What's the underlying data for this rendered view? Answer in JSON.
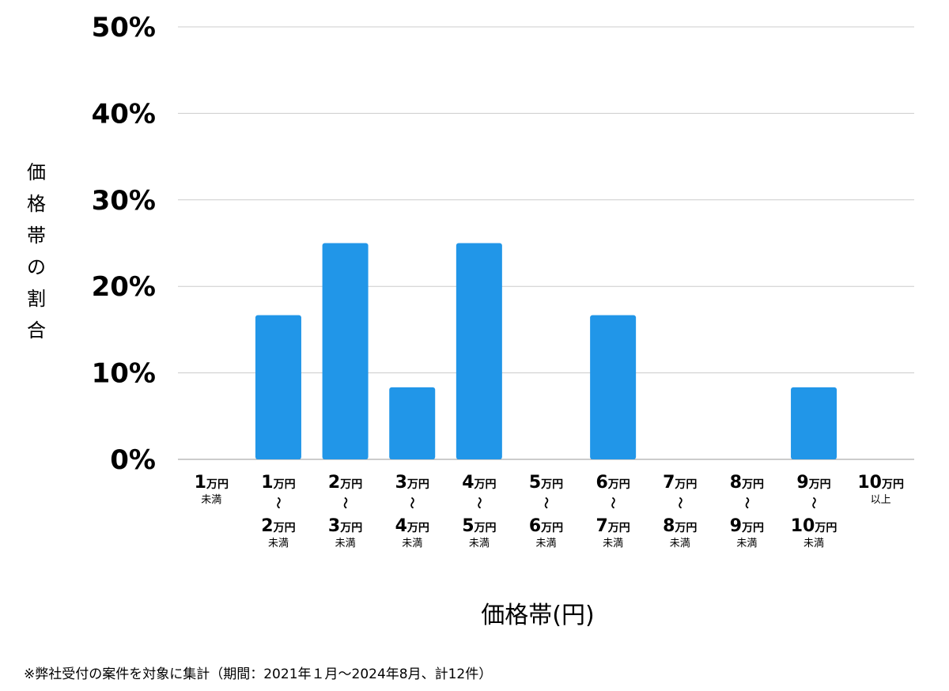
{
  "chart_data": {
    "type": "bar",
    "title": "",
    "xlabel": "価格帯(円)",
    "ylabel": "価格帯の割合",
    "ylim": [
      0,
      50
    ],
    "yticks": [
      0,
      10,
      20,
      30,
      40,
      50
    ],
    "ytick_labels": [
      "0%",
      "10%",
      "20%",
      "30%",
      "40%",
      "50%"
    ],
    "grid": true,
    "bar_color": "#2196e8",
    "grid_color": "#cccccc",
    "categories": [
      "1万円未満",
      "1万円〜2万円未満",
      "2万円〜3万円未満",
      "3万円〜4万円未満",
      "4万円〜5万円未満",
      "5万円〜6万円未満",
      "6万円〜7万円未満",
      "7万円〜8万円未満",
      "8万円〜9万円未満",
      "9万円〜10万円未満",
      "10万円以上"
    ],
    "category_labels": [
      {
        "from": "1",
        "to": null,
        "suffix": "未満"
      },
      {
        "from": "1",
        "to": "2",
        "suffix": "未満"
      },
      {
        "from": "2",
        "to": "3",
        "suffix": "未満"
      },
      {
        "from": "3",
        "to": "4",
        "suffix": "未満"
      },
      {
        "from": "4",
        "to": "5",
        "suffix": "未満"
      },
      {
        "from": "5",
        "to": "6",
        "suffix": "未満"
      },
      {
        "from": "6",
        "to": "7",
        "suffix": "未満"
      },
      {
        "from": "7",
        "to": "8",
        "suffix": "未満"
      },
      {
        "from": "8",
        "to": "9",
        "suffix": "未満"
      },
      {
        "from": "9",
        "to": "10",
        "suffix": "未満"
      },
      {
        "from": "10",
        "to": null,
        "suffix": "以上"
      }
    ],
    "unit_label": "万円",
    "range_symbol": "〜",
    "values": [
      0,
      16.67,
      25,
      8.33,
      25,
      0,
      16.67,
      0,
      0,
      8.33,
      0
    ]
  },
  "footnote": "※弊社受付の案件を対象に集計（期間：2021年１月〜2024年8月、計12件）"
}
